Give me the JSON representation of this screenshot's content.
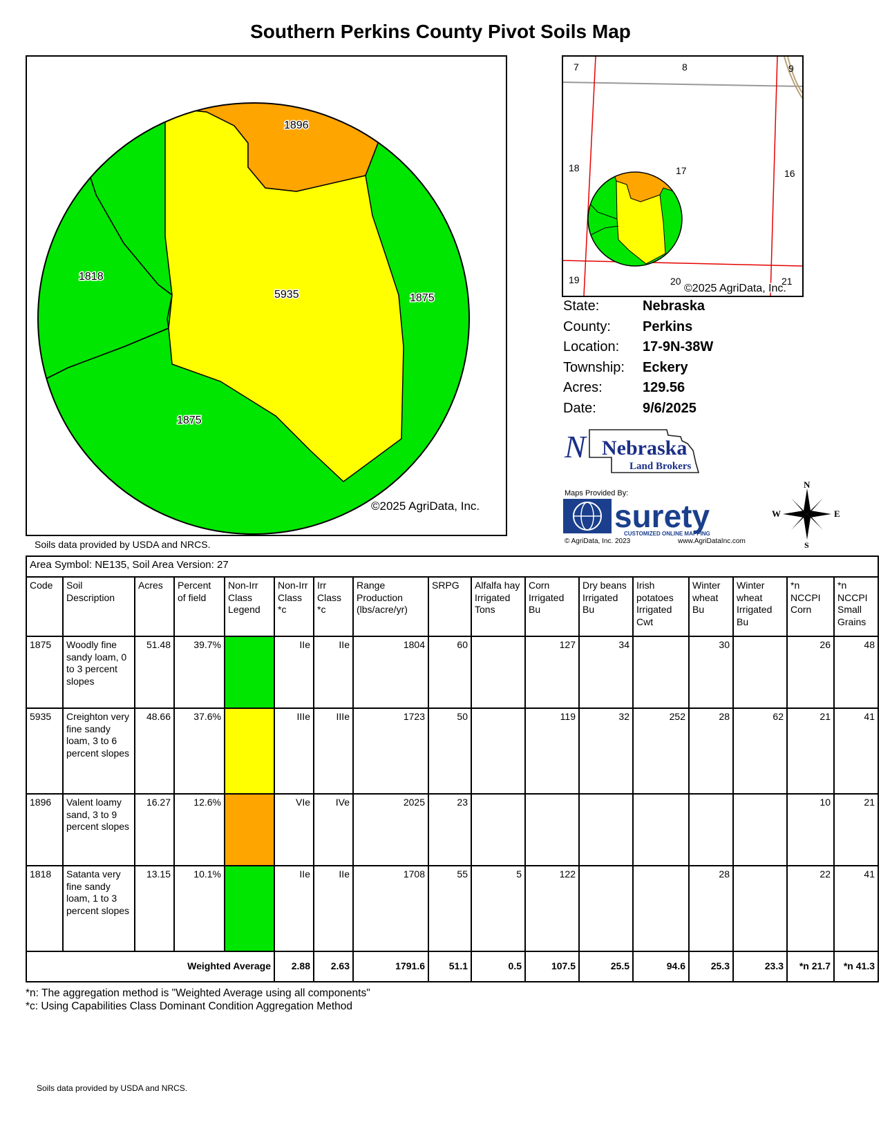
{
  "title": "Southern Perkins County Pivot Soils Map",
  "main_map": {
    "copyright": "©2025 AgriData, Inc.",
    "soil_labels": [
      "1896",
      "1818",
      "5935",
      "1875",
      "1875"
    ],
    "colors": {
      "green": "#00e600",
      "yellow": "#ffff00",
      "orange": "#ffa500"
    }
  },
  "main_credit": "Soils data provided by USDA and NRCS.",
  "locator_map": {
    "section_numbers": [
      "7",
      "8",
      "9",
      "18",
      "17",
      "16",
      "19",
      "20",
      "21"
    ],
    "copyright": "©2025 AgriData, Inc."
  },
  "info": {
    "state_label": "State:",
    "state": "Nebraska",
    "county_label": "County:",
    "county": "Perkins",
    "location_label": "Location:",
    "location": "17-9N-38W",
    "township_label": "Township:",
    "township": "Eckery",
    "acres_label": "Acres:",
    "acres": "129.56",
    "date_label": "Date:",
    "date": "9/6/2025"
  },
  "logos": {
    "nlb_main": "Nebraska",
    "nlb_sub": "Land Brokers",
    "maps_by": "Maps Provided By:",
    "surety": "surety",
    "surety_tag": "CUSTOMIZED ONLINE MAPPING",
    "agridata_copy": "© AgriData, Inc. 2023",
    "agridata_url": "www.AgriDataInc.com"
  },
  "compass": {
    "n": "N",
    "s": "S",
    "e": "E",
    "w": "W"
  },
  "table": {
    "area_header": "Area Symbol: NE135, Soil Area Version: 27",
    "columns": [
      "Code",
      "Soil Description",
      "Acres",
      "Percent of field",
      "Non-Irr Class Legend",
      "Non-Irr Class *c",
      "Irr Class *c",
      "Range Production (lbs/acre/yr)",
      "SRPG",
      "Alfalfa hay Irrigated Tons",
      "Corn Irrigated Bu",
      "Dry beans Irrigated Bu",
      "Irish potatoes Irrigated Cwt",
      "Winter wheat Bu",
      "Winter wheat Irrigated Bu",
      "*n NCCPI Corn",
      "*n NCCPI Small Grains"
    ],
    "rows": [
      {
        "code": "1875",
        "desc": "Woodly fine sandy loam, 0 to 3 percent slopes",
        "acres": "51.48",
        "pct": "39.7%",
        "color": "#00e600",
        "nonirr": "IIe",
        "irr": "IIe",
        "range": "1804",
        "srpg": "60",
        "alfalfa": "",
        "corn": "127",
        "beans": "34",
        "potatoes": "",
        "wheat": "30",
        "wheat_irr": "",
        "nccpi_corn": "26",
        "nccpi_sg": "48"
      },
      {
        "code": "5935",
        "desc": "Creighton very fine sandy loam, 3 to 6 percent slopes",
        "acres": "48.66",
        "pct": "37.6%",
        "color": "#ffff00",
        "nonirr": "IIIe",
        "irr": "IIIe",
        "range": "1723",
        "srpg": "50",
        "alfalfa": "",
        "corn": "119",
        "beans": "32",
        "potatoes": "252",
        "wheat": "28",
        "wheat_irr": "62",
        "nccpi_corn": "21",
        "nccpi_sg": "41"
      },
      {
        "code": "1896",
        "desc": "Valent loamy sand, 3 to 9 percent slopes",
        "acres": "16.27",
        "pct": "12.6%",
        "color": "#ffa500",
        "nonirr": "VIe",
        "irr": "IVe",
        "range": "2025",
        "srpg": "23",
        "alfalfa": "",
        "corn": "",
        "beans": "",
        "potatoes": "",
        "wheat": "",
        "wheat_irr": "",
        "nccpi_corn": "10",
        "nccpi_sg": "21"
      },
      {
        "code": "1818",
        "desc": "Satanta very fine sandy loam, 1 to 3 percent slopes",
        "acres": "13.15",
        "pct": "10.1%",
        "color": "#00e600",
        "nonirr": "IIe",
        "irr": "IIe",
        "range": "1708",
        "srpg": "55",
        "alfalfa": "5",
        "corn": "122",
        "beans": "",
        "potatoes": "",
        "wheat": "28",
        "wheat_irr": "",
        "nccpi_corn": "22",
        "nccpi_sg": "41"
      }
    ],
    "weighted": {
      "label": "Weighted Average",
      "nonirr": "2.88",
      "irr": "2.63",
      "range": "1791.6",
      "srpg": "51.1",
      "alfalfa": "0.5",
      "corn": "107.5",
      "beans": "25.5",
      "potatoes": "94.6",
      "wheat": "25.3",
      "wheat_irr": "23.3",
      "nccpi_corn": "*n 21.7",
      "nccpi_sg": "*n 41.3"
    }
  },
  "notes": [
    "*n: The aggregation method is \"Weighted Average using all components\"",
    "*c: Using Capabilities Class Dominant Condition Aggregation Method"
  ],
  "bottom_credit": "Soils data provided by USDA and NRCS."
}
